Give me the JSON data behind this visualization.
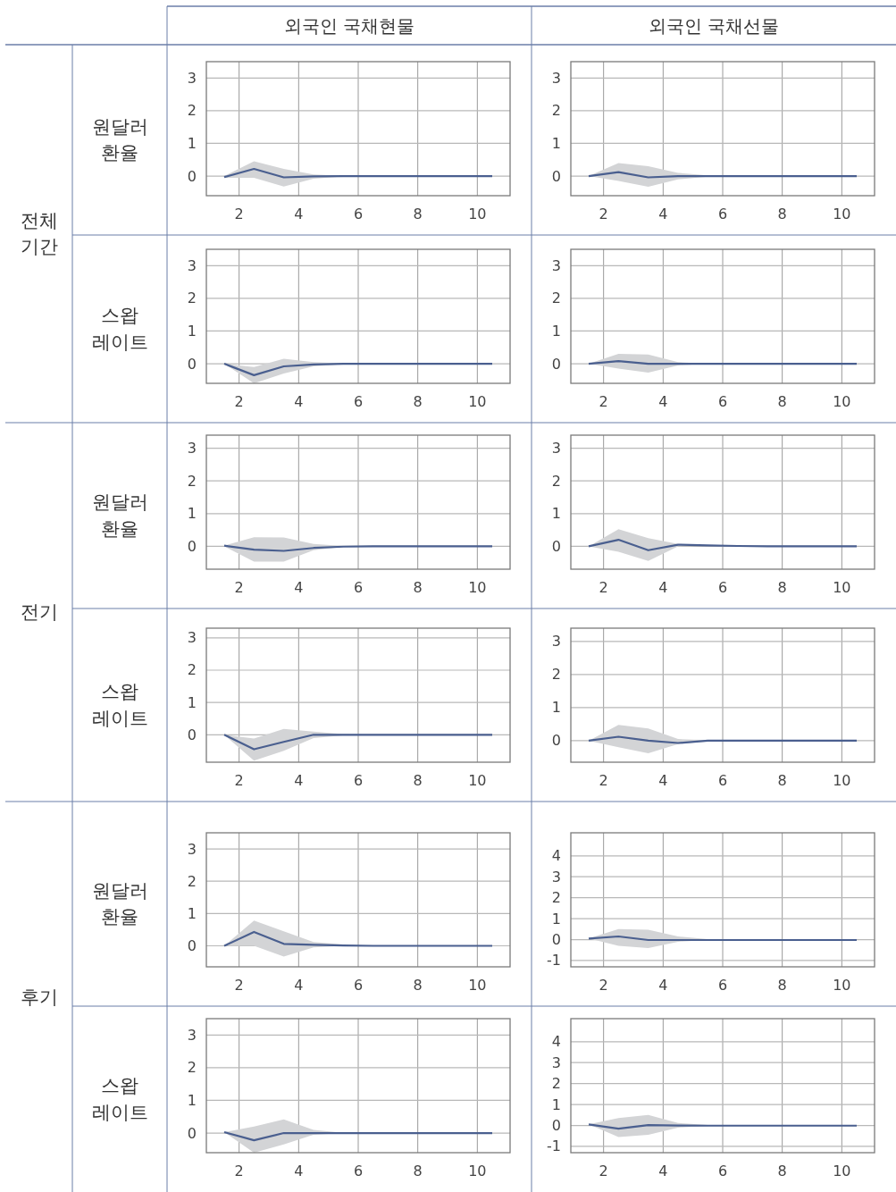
{
  "chart_data": [
    {
      "type": "line",
      "title": "외국인 국채현물",
      "ylabel": "원달러 환율",
      "annotations": [
        "전체 기간"
      ],
      "x": [
        1.5,
        2.5,
        3.5,
        4.5,
        5.5,
        6.5,
        7.5,
        8.5,
        9.5,
        10.5
      ],
      "xlim": [
        0.9,
        11.1
      ],
      "xticks": [
        2,
        4,
        6,
        8,
        10
      ],
      "ylim": [
        -0.6,
        3.5
      ],
      "yticks": [
        0,
        1,
        2,
        3
      ],
      "grid": true,
      "series": [
        {
          "color": "#4a5f8f",
          "values": [
            -0.03,
            0.22,
            -0.04,
            -0.01,
            0,
            0,
            0,
            0,
            0,
            0
          ],
          "upper": [
            0,
            0.45,
            0.22,
            0.05,
            0.01,
            0,
            0,
            0,
            0,
            0
          ],
          "lower": [
            -0.05,
            -0.05,
            -0.32,
            -0.08,
            -0.01,
            0,
            0,
            0,
            0,
            0
          ]
        }
      ]
    },
    {
      "type": "line",
      "title": "외국인 국채선물",
      "x": [
        1.5,
        2.5,
        3.5,
        4.5,
        5.5,
        6.5,
        7.5,
        8.5,
        9.5,
        10.5
      ],
      "xlim": [
        0.9,
        11.1
      ],
      "xticks": [
        2,
        4,
        6,
        8,
        10
      ],
      "ylim": [
        -0.6,
        3.5
      ],
      "yticks": [
        0,
        1,
        2,
        3
      ],
      "grid": true,
      "series": [
        {
          "color": "#4a5f8f",
          "values": [
            0,
            0.12,
            -0.04,
            0,
            0,
            0,
            0,
            0,
            0,
            0
          ],
          "upper": [
            0,
            0.4,
            0.3,
            0.1,
            0.02,
            0,
            0,
            0,
            0,
            0
          ],
          "lower": [
            0,
            -0.15,
            -0.33,
            -0.1,
            -0.02,
            0,
            0,
            0,
            0,
            0
          ]
        }
      ]
    },
    {
      "type": "line",
      "ylabel": "스왑 레이트",
      "x": [
        1.5,
        2.5,
        3.5,
        4.5,
        5.5,
        6.5,
        7.5,
        8.5,
        9.5,
        10.5
      ],
      "xlim": [
        0.9,
        11.1
      ],
      "xticks": [
        2,
        4,
        6,
        8,
        10
      ],
      "ylim": [
        -0.6,
        3.5
      ],
      "yticks": [
        0,
        1,
        2,
        3
      ],
      "grid": true,
      "series": [
        {
          "color": "#4a5f8f",
          "values": [
            0,
            -0.35,
            -0.08,
            -0.02,
            0,
            0,
            0,
            0,
            0,
            0
          ],
          "upper": [
            0,
            -0.1,
            0.15,
            0.05,
            0.01,
            0,
            0,
            0,
            0,
            0
          ],
          "lower": [
            0,
            -0.6,
            -0.3,
            -0.08,
            -0.01,
            0,
            0,
            0,
            0,
            0
          ]
        }
      ]
    },
    {
      "type": "line",
      "x": [
        1.5,
        2.5,
        3.5,
        4.5,
        5.5,
        6.5,
        7.5,
        8.5,
        9.5,
        10.5
      ],
      "xlim": [
        0.9,
        11.1
      ],
      "xticks": [
        2,
        4,
        6,
        8,
        10
      ],
      "ylim": [
        -0.6,
        3.5
      ],
      "yticks": [
        0,
        1,
        2,
        3
      ],
      "grid": true,
      "series": [
        {
          "color": "#4a5f8f",
          "values": [
            0,
            0.08,
            0,
            0,
            0,
            0,
            0,
            0,
            0,
            0
          ],
          "upper": [
            0,
            0.3,
            0.28,
            0.05,
            0,
            0,
            0,
            0,
            0,
            0
          ],
          "lower": [
            0,
            -0.15,
            -0.27,
            -0.05,
            0,
            0,
            0,
            0,
            0,
            0
          ]
        }
      ]
    },
    {
      "type": "line",
      "ylabel": "원달러 환율",
      "annotations": [
        "전기"
      ],
      "x": [
        1.5,
        2.5,
        3.5,
        4.5,
        5.5,
        6.5,
        7.5,
        8.5,
        9.5,
        10.5
      ],
      "xlim": [
        0.9,
        11.1
      ],
      "xticks": [
        2,
        4,
        6,
        8,
        10
      ],
      "ylim": [
        -0.7,
        3.4
      ],
      "yticks": [
        0,
        1,
        2,
        3
      ],
      "grid": true,
      "series": [
        {
          "color": "#4a5f8f",
          "values": [
            0.02,
            -0.1,
            -0.14,
            -0.05,
            -0.01,
            0,
            0,
            0,
            0,
            0
          ],
          "upper": [
            0.02,
            0.28,
            0.27,
            0.07,
            0.01,
            0,
            0,
            0,
            0,
            0
          ],
          "lower": [
            0,
            -0.47,
            -0.47,
            -0.12,
            -0.02,
            0,
            0,
            0,
            0,
            0
          ]
        }
      ]
    },
    {
      "type": "line",
      "x": [
        1.5,
        2.5,
        3.5,
        4.5,
        5.5,
        6.5,
        7.5,
        8.5,
        9.5,
        10.5
      ],
      "xlim": [
        0.9,
        11.1
      ],
      "xticks": [
        2,
        4,
        6,
        8,
        10
      ],
      "ylim": [
        -0.7,
        3.4
      ],
      "yticks": [
        0,
        1,
        2,
        3
      ],
      "grid": true,
      "series": [
        {
          "color": "#4a5f8f",
          "values": [
            0,
            0.2,
            -0.12,
            0.05,
            0.03,
            0.01,
            0,
            0,
            0,
            0
          ],
          "upper": [
            0,
            0.52,
            0.25,
            0.07,
            0.04,
            0.01,
            0,
            0,
            0,
            0
          ],
          "lower": [
            0,
            -0.17,
            -0.45,
            0,
            0.02,
            0,
            0,
            0,
            0,
            0
          ]
        }
      ]
    },
    {
      "type": "line",
      "ylabel": "스왑 레이트",
      "x": [
        1.5,
        2.5,
        3.5,
        4.5,
        5.5,
        6.5,
        7.5,
        8.5,
        9.5,
        10.5
      ],
      "xlim": [
        0.9,
        11.1
      ],
      "xticks": [
        2,
        4,
        6,
        8,
        10
      ],
      "ylim": [
        -0.85,
        3.3
      ],
      "yticks": [
        0,
        1,
        2,
        3
      ],
      "grid": true,
      "series": [
        {
          "color": "#4a5f8f",
          "values": [
            0,
            -0.45,
            -0.22,
            0,
            0,
            0,
            0,
            0,
            0,
            0
          ],
          "upper": [
            0,
            -0.12,
            0.18,
            0.1,
            0.02,
            0,
            0,
            0,
            0,
            0
          ],
          "lower": [
            0,
            -0.8,
            -0.5,
            -0.1,
            -0.02,
            0,
            0,
            0,
            0,
            0
          ]
        }
      ]
    },
    {
      "type": "line",
      "x": [
        1.5,
        2.5,
        3.5,
        4.5,
        5.5,
        6.5,
        7.5,
        8.5,
        9.5,
        10.5
      ],
      "xlim": [
        0.9,
        11.1
      ],
      "xticks": [
        2,
        4,
        6,
        8,
        10
      ],
      "ylim": [
        -0.65,
        3.4
      ],
      "yticks": [
        0,
        1,
        2,
        3
      ],
      "grid": true,
      "series": [
        {
          "color": "#4a5f8f",
          "values": [
            0,
            0.12,
            0,
            -0.07,
            0,
            0,
            0,
            0,
            0,
            0
          ],
          "upper": [
            0,
            0.48,
            0.37,
            0.05,
            0.02,
            0,
            0,
            0,
            0,
            0
          ],
          "lower": [
            0,
            -0.2,
            -0.38,
            -0.1,
            -0.02,
            0,
            0,
            0,
            0,
            0
          ]
        }
      ]
    },
    {
      "type": "line",
      "ylabel": "원달러 환율",
      "annotations": [
        "후기"
      ],
      "x": [
        1.5,
        2.5,
        3.5,
        4.5,
        5.5,
        6.5,
        7.5,
        8.5,
        9.5,
        10.5
      ],
      "xlim": [
        0.9,
        11.1
      ],
      "xticks": [
        2,
        4,
        6,
        8,
        10
      ],
      "ylim": [
        -0.65,
        3.5
      ],
      "yticks": [
        0,
        1,
        2,
        3
      ],
      "grid": true,
      "series": [
        {
          "color": "#4a5f8f",
          "values": [
            0,
            0.43,
            0.06,
            0.03,
            0.01,
            0,
            0,
            0,
            0,
            0
          ],
          "upper": [
            0,
            0.78,
            0.45,
            0.12,
            0.04,
            0,
            0,
            0,
            0,
            0
          ],
          "lower": [
            0,
            0,
            -0.33,
            -0.05,
            0,
            0,
            0,
            0,
            0,
            0
          ]
        }
      ]
    },
    {
      "type": "line",
      "x": [
        1.5,
        2.5,
        3.5,
        4.5,
        5.5,
        6.5,
        7.5,
        8.5,
        9.5,
        10.5
      ],
      "xlim": [
        0.9,
        11.1
      ],
      "xticks": [
        2,
        4,
        6,
        8,
        10
      ],
      "ylim": [
        -1.3,
        5.1
      ],
      "yticks": [
        -1,
        0,
        1,
        2,
        3,
        4
      ],
      "grid": true,
      "series": [
        {
          "color": "#4a5f8f",
          "values": [
            0.05,
            0.15,
            -0.02,
            -0.02,
            -0.02,
            -0.02,
            -0.02,
            -0.02,
            -0.02,
            -0.02
          ],
          "upper": [
            0.05,
            0.5,
            0.47,
            0.15,
            0.02,
            0,
            0,
            0,
            0,
            0
          ],
          "lower": [
            0.05,
            -0.3,
            -0.4,
            -0.1,
            -0.02,
            -0.02,
            -0.02,
            -0.02,
            -0.02,
            -0.02
          ]
        }
      ]
    },
    {
      "type": "line",
      "ylabel": "스왑 레이트",
      "x": [
        1.5,
        2.5,
        3.5,
        4.5,
        5.5,
        6.5,
        7.5,
        8.5,
        9.5,
        10.5
      ],
      "xlim": [
        0.9,
        11.1
      ],
      "xticks": [
        2,
        4,
        6,
        8,
        10
      ],
      "ylim": [
        -0.6,
        3.5
      ],
      "yticks": [
        0,
        1,
        2,
        3
      ],
      "grid": true,
      "series": [
        {
          "color": "#4a5f8f",
          "values": [
            0.03,
            -0.22,
            0,
            0,
            0,
            0,
            0,
            0,
            0,
            0
          ],
          "upper": [
            0.03,
            0.2,
            0.42,
            0.1,
            0.01,
            0,
            0,
            0,
            0,
            0
          ],
          "lower": [
            0.03,
            -0.6,
            -0.35,
            -0.05,
            0,
            0,
            0,
            0,
            0,
            0
          ]
        }
      ]
    },
    {
      "type": "line",
      "x": [
        1.5,
        2.5,
        3.5,
        4.5,
        5.5,
        6.5,
        7.5,
        8.5,
        9.5,
        10.5
      ],
      "xlim": [
        0.9,
        11.1
      ],
      "xticks": [
        2,
        4,
        6,
        8,
        10
      ],
      "ylim": [
        -1.3,
        5.1
      ],
      "yticks": [
        -1,
        0,
        1,
        2,
        3,
        4
      ],
      "grid": true,
      "series": [
        {
          "color": "#4a5f8f",
          "values": [
            0.05,
            -0.15,
            0.02,
            0,
            -0.01,
            -0.01,
            -0.01,
            -0.01,
            -0.01,
            -0.01
          ],
          "upper": [
            0.05,
            0.35,
            0.5,
            0.12,
            0.02,
            0,
            0,
            0,
            0,
            0
          ],
          "lower": [
            0.05,
            -0.55,
            -0.45,
            -0.1,
            -0.02,
            -0.01,
            -0.01,
            -0.01,
            -0.01,
            -0.01
          ]
        }
      ]
    }
  ]
}
